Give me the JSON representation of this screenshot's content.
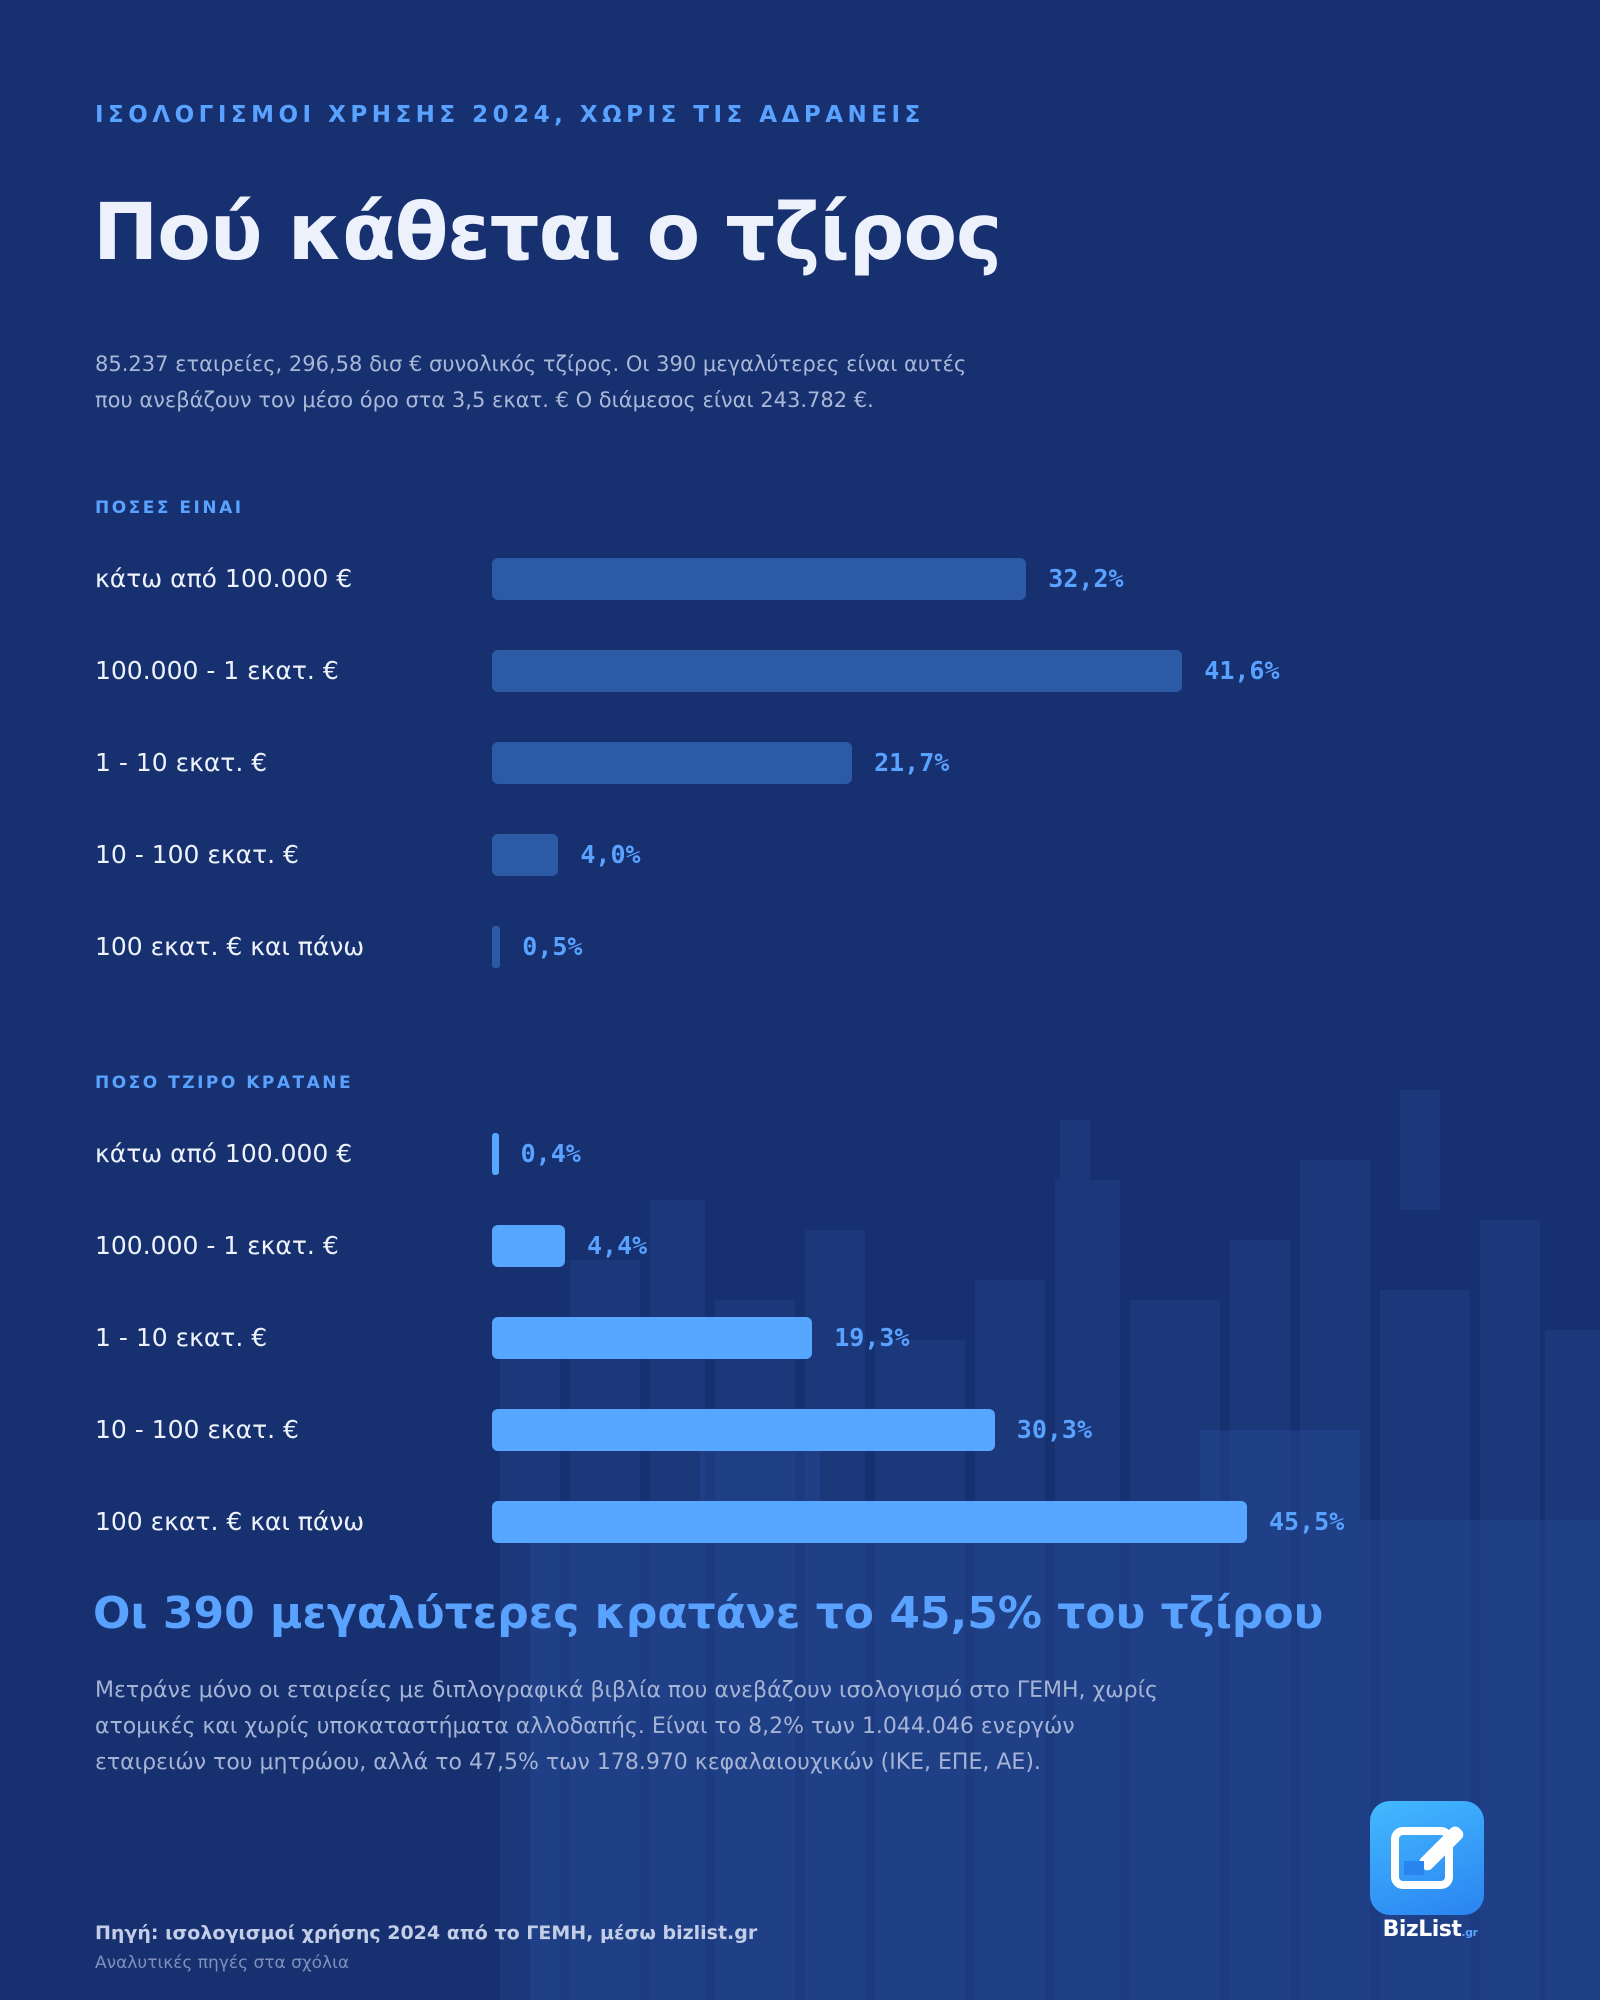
{
  "header": {
    "kicker": "ΙΣΟΛΟΓΙΣΜΟΙ ΧΡΗΣΗΣ 2024, ΧΩΡΙΣ ΤΙΣ ΑΔΡΑΝΕΙΣ",
    "title": "Πού κάθεται ο τζίρος",
    "subtitle": "85.237 εταιρείες, 296,58 δισ € συνολικός τζίρος. Οι 390 μεγαλύτερες είναι αυτές που ανεβάζουν τον μέσο όρο στα 3,5 εκατ. € Ο διάμεσος είναι 243.782 €."
  },
  "chart_data": [
    {
      "type": "bar",
      "orientation": "horizontal",
      "title": "ΠΟΣΕΣ ΕΙΝΑΙ",
      "categories": [
        "κάτω από 100.000 €",
        "100.000 - 1 εκατ. €",
        "1 - 10 εκατ. €",
        "10 - 100 εκατ. €",
        "100 εκατ. € και πάνω"
      ],
      "values": [
        32.2,
        41.6,
        21.7,
        4.0,
        0.5
      ],
      "value_labels": [
        "32,2%",
        "41,6%",
        "21,7%",
        "4,0%",
        "0,5%"
      ],
      "unit": "%",
      "xlim": [
        0,
        45.5
      ],
      "color": "#2d5aa5",
      "grid": false
    },
    {
      "type": "bar",
      "orientation": "horizontal",
      "title": "ΠΟΣΟ ΤΖΙΡΟ ΚΡΑΤΑΝΕ",
      "categories": [
        "κάτω από 100.000 €",
        "100.000 - 1 εκατ. €",
        "1 - 10 εκατ. €",
        "10 - 100 εκατ. €",
        "100 εκατ. € και πάνω"
      ],
      "values": [
        0.4,
        4.4,
        19.3,
        30.3,
        45.5
      ],
      "value_labels": [
        "0,4%",
        "4,4%",
        "19,3%",
        "30,3%",
        "45,5%"
      ],
      "unit": "%",
      "xlim": [
        0,
        45.5
      ],
      "color": "#57a6ff",
      "grid": false
    }
  ],
  "headline": "Οι 390 μεγαλύτερες κρατάνε το 45,5% του τζίρου",
  "note": "Μετράνε μόνο οι εταιρείες με διπλογραφικά βιβλία που ανεβάζουν ισολογισμό στο ΓΕΜΗ, χωρίς ατομικές και χωρίς υποκαταστήματα αλλοδαπής. Είναι το 8,2% των 1.044.046 ενεργών εταιρειών του μητρώου, αλλά το 47,5% των 178.970 κεφαλαιουχικών (ΙΚΕ, ΕΠΕ, ΑΕ).",
  "footer": {
    "source": "Πηγή: ισολογισμοί χρήσης 2024 από το ΓΕΜΗ, μέσω bizlist.gr",
    "source_note": "Αναλυτικές πηγές στα σχόλια"
  },
  "logo": {
    "name": "BizList",
    "suffix": ".gr",
    "icon": "edit-pencil-icon"
  },
  "colors": {
    "background": "#17306f",
    "accent": "#5aa2ff",
    "bar_count": "#2d5aa5",
    "bar_turnover": "#57a6ff"
  }
}
